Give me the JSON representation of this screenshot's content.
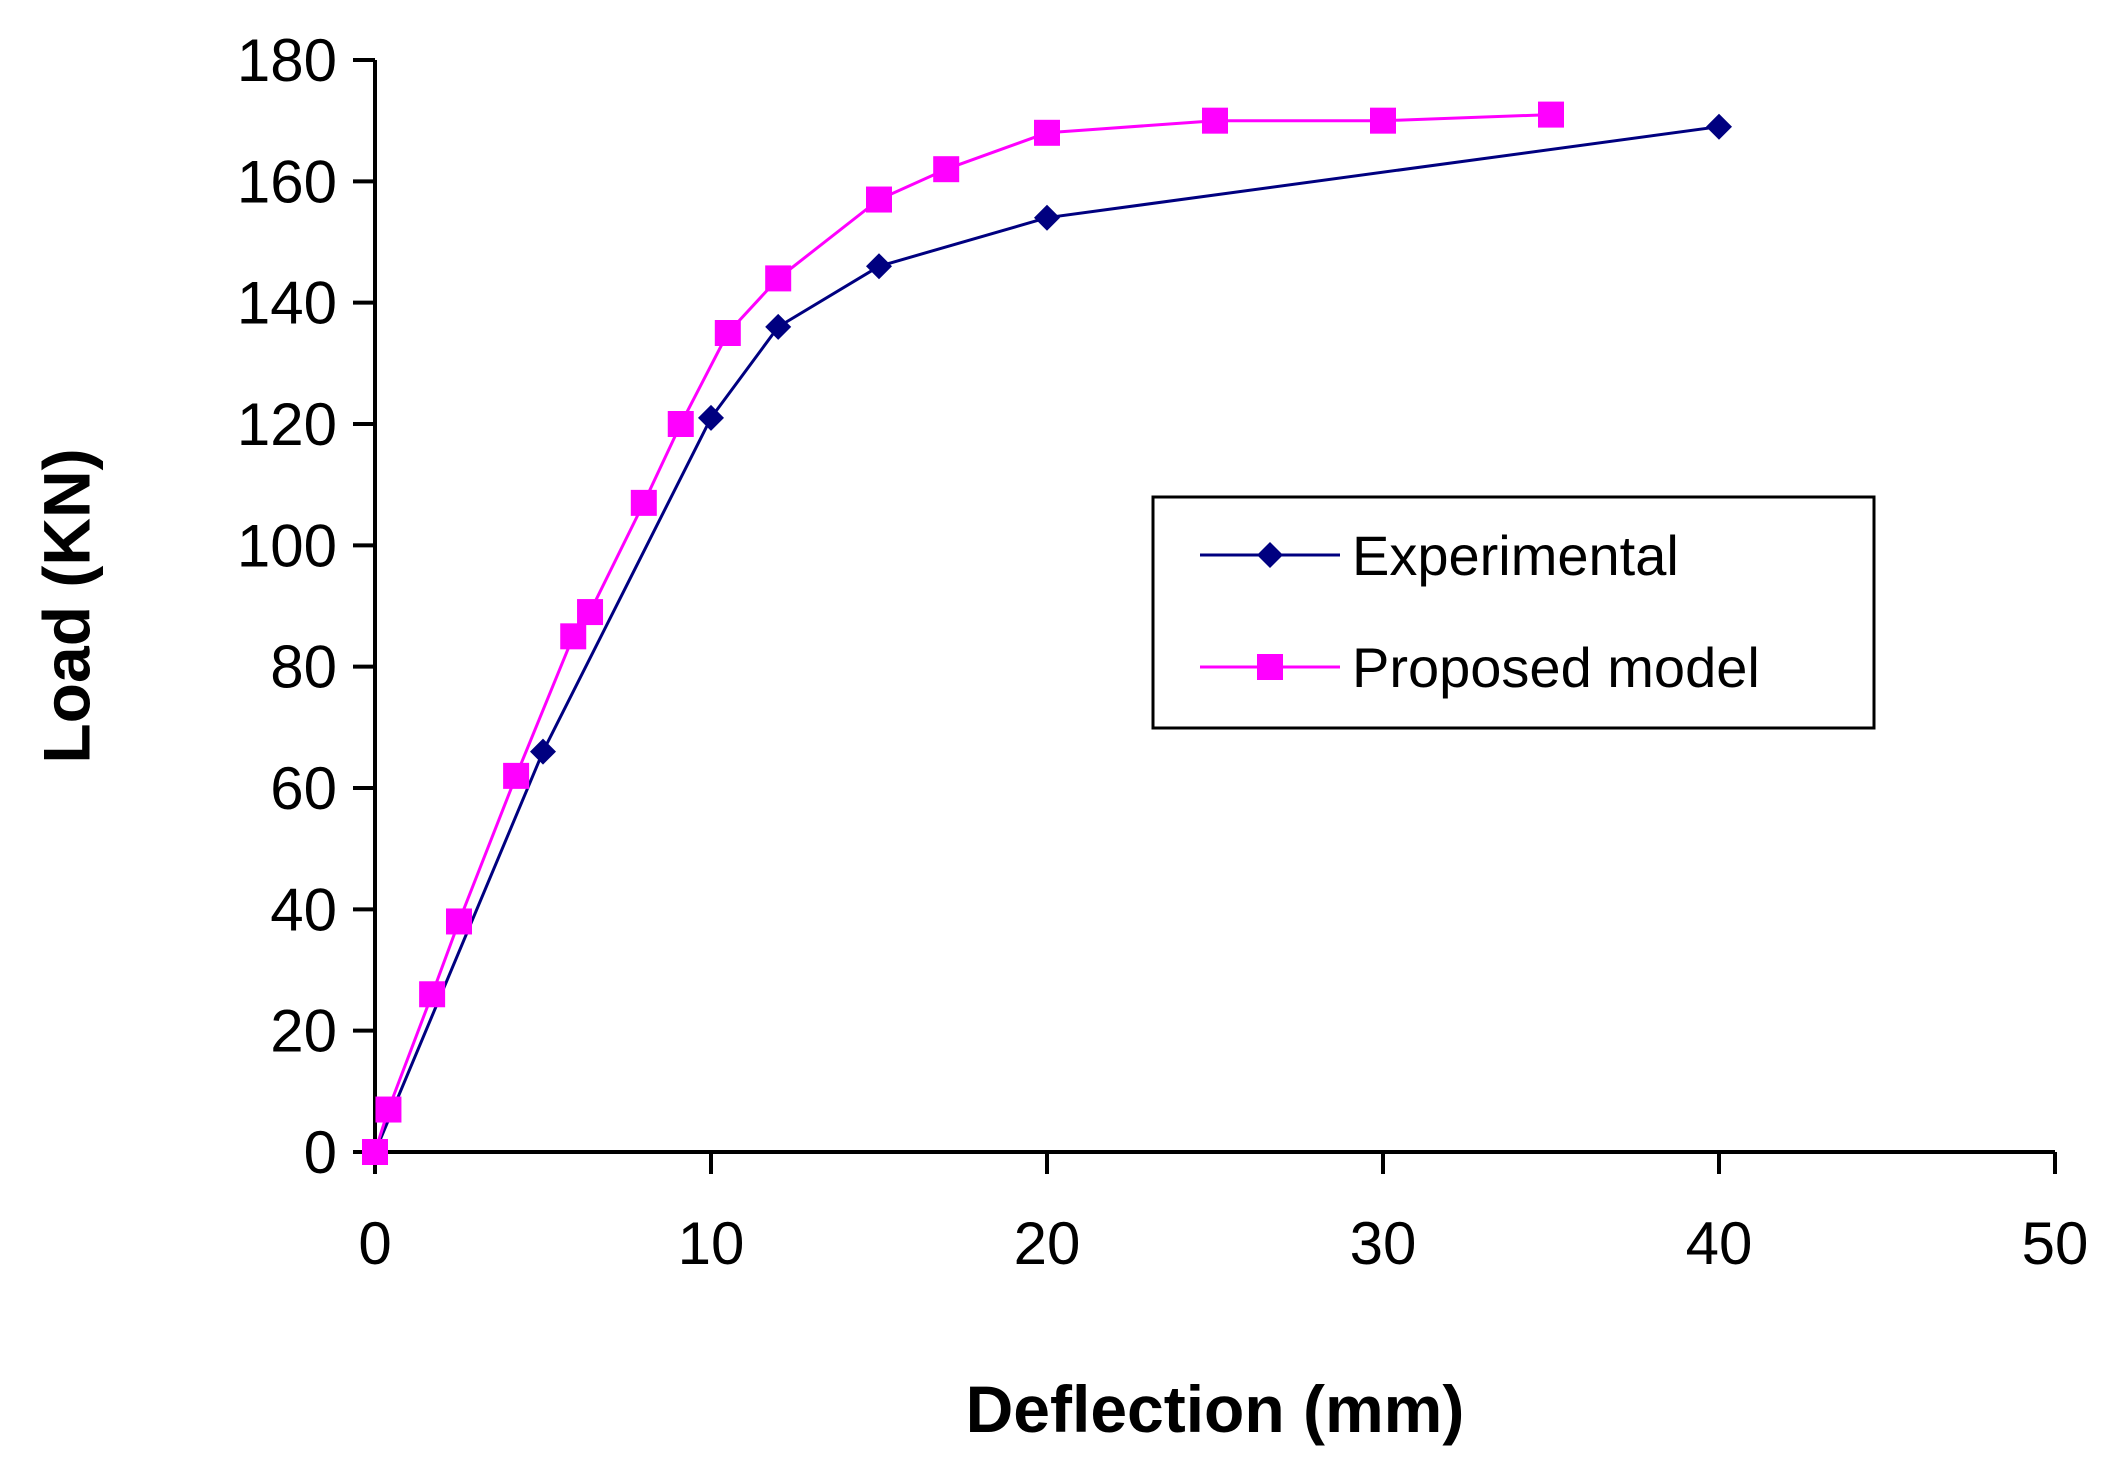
{
  "chart_data": {
    "type": "line",
    "title": "",
    "xlabel": "Deflection (mm)",
    "ylabel": "Load (KN)",
    "xlim": [
      0,
      50
    ],
    "ylim": [
      0,
      180
    ],
    "xticks": [
      0,
      10,
      20,
      30,
      40,
      50
    ],
    "yticks": [
      0,
      20,
      40,
      60,
      80,
      100,
      120,
      140,
      160,
      180
    ],
    "grid": false,
    "legend_position": "right-middle",
    "series": [
      {
        "name": "Experimental",
        "color": "#000080",
        "marker": "diamond",
        "x": [
          0,
          5,
          10,
          12,
          15,
          20,
          40
        ],
        "y": [
          0,
          66,
          121,
          136,
          146,
          154,
          169
        ]
      },
      {
        "name": "Proposed model",
        "color": "#ff00ff",
        "marker": "square",
        "x": [
          0,
          0.4,
          1.7,
          2.5,
          4.2,
          5.9,
          6.4,
          8.0,
          9.1,
          10.5,
          12.0,
          15.0,
          17.0,
          20.0,
          25.0,
          30.0,
          35.0
        ],
        "y": [
          0,
          7,
          26,
          38,
          62,
          85,
          89,
          107,
          120,
          135,
          144,
          157,
          162,
          168,
          170,
          170,
          171
        ]
      }
    ]
  }
}
